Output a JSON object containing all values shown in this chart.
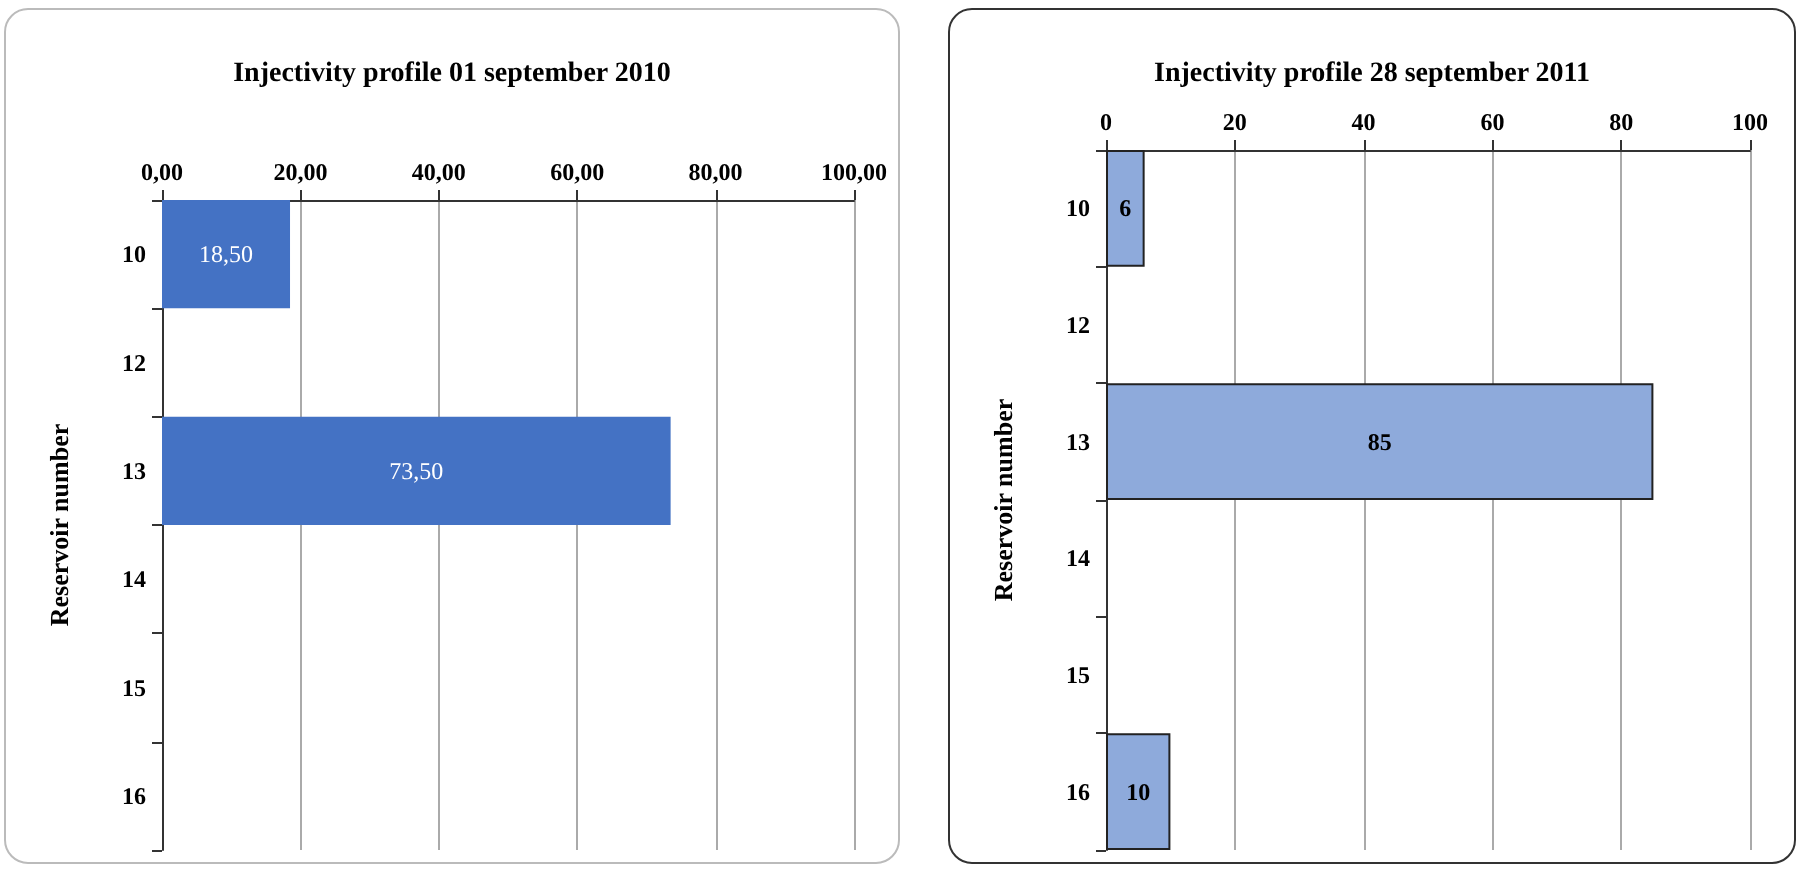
{
  "chart_data": [
    {
      "type": "bar",
      "orientation": "horizontal",
      "title": "Injectivity profile 01 september 2010",
      "ylabel": "Reservoir number",
      "categories": [
        "10",
        "12",
        "13",
        "14",
        "15",
        "16"
      ],
      "values": [
        18.5,
        null,
        73.5,
        null,
        null,
        null
      ],
      "value_labels": [
        "18,50",
        null,
        "73,50",
        null,
        null,
        null
      ],
      "color": "#4472c4",
      "xlim": [
        0,
        100
      ],
      "xticks": [
        {
          "value": 0,
          "label": "0,00"
        },
        {
          "value": 20,
          "label": "20,00"
        },
        {
          "value": 40,
          "label": "40,00"
        },
        {
          "value": 60,
          "label": "60,00"
        },
        {
          "value": 80,
          "label": "80,00"
        },
        {
          "value": 100,
          "label": "100,00"
        }
      ],
      "grid": "x"
    },
    {
      "type": "bar",
      "orientation": "horizontal",
      "title": "Injectivity profile 28 september 2011",
      "ylabel": "Reservoir number",
      "categories": [
        "10",
        "12",
        "13",
        "14",
        "15",
        "16"
      ],
      "values": [
        6,
        null,
        85,
        null,
        null,
        10
      ],
      "data_labels": true,
      "color": "#8eaadb",
      "xlim": [
        0,
        100
      ],
      "xticks": [
        0,
        20,
        40,
        60,
        80,
        100
      ],
      "grid": "x"
    }
  ]
}
